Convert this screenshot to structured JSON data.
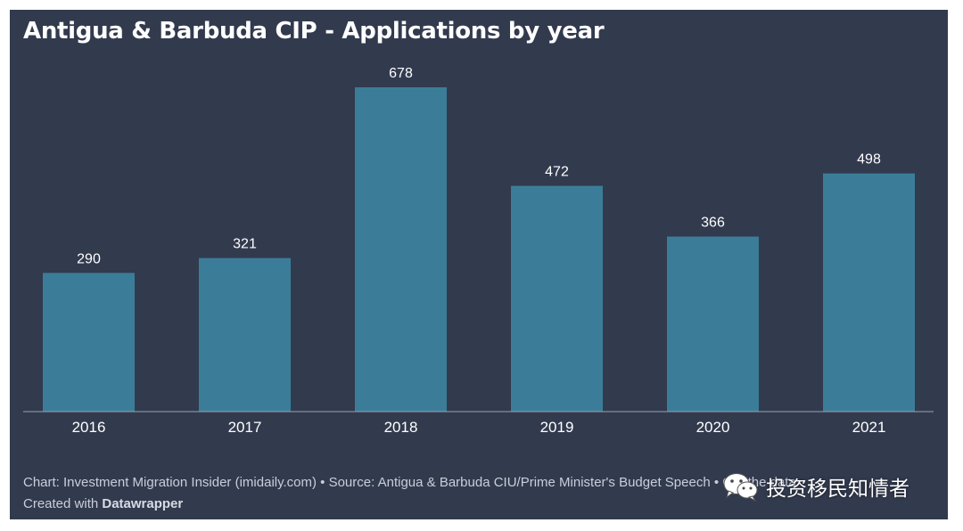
{
  "chart_data": {
    "type": "bar",
    "title": "Antigua & Barbuda CIP - Applications by year",
    "categories": [
      "2016",
      "2017",
      "2018",
      "2019",
      "2020",
      "2021"
    ],
    "values": [
      290,
      321,
      678,
      472,
      366,
      498
    ],
    "xlabel": "",
    "ylabel": "",
    "ylim": [
      0,
      678
    ],
    "grid": false,
    "legend": "none",
    "colors": {
      "background": "#323a4e",
      "bar": "#3b7d98",
      "text": "#ffffff",
      "baseline": "#9aa1ad"
    }
  },
  "footer": {
    "line1": "Chart: Investment Migration Insider (imidaily.com) • Source: Antigua & Barbuda CIU/Prime Minister's Budget Speech • Get the data",
    "created_prefix": "Created with ",
    "created_brand": "Datawrapper"
  },
  "watermark": {
    "icon": "wechat-icon",
    "text": "投资移民知情者"
  }
}
